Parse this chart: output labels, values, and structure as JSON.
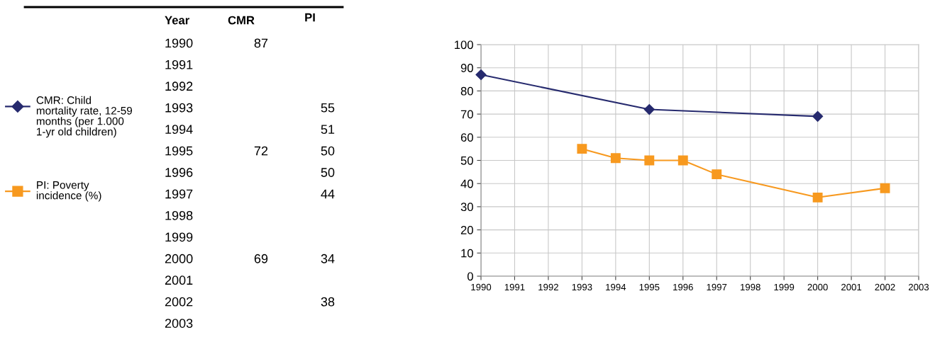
{
  "chart_data": {
    "type": "line",
    "series": [
      {
        "name": "CMR: Child mortality rate, 12-59 months (per 1.000 1-yr old children)",
        "color": "#262a6e",
        "marker": "diamond",
        "x": [
          1990,
          1995,
          2000
        ],
        "values": [
          87,
          72,
          69
        ]
      },
      {
        "name": "PI: Poverty incidence (%)",
        "color": "#f7991f",
        "marker": "square",
        "x": [
          1993,
          1994,
          1995,
          1996,
          1997,
          2000,
          2002
        ],
        "values": [
          55,
          51,
          50,
          50,
          44,
          34,
          38
        ]
      }
    ],
    "xlim": [
      1990,
      2003
    ],
    "xticks": [
      1990,
      1991,
      1992,
      1993,
      1994,
      1995,
      1996,
      1997,
      1998,
      1999,
      2000,
      2001,
      2002,
      2003
    ],
    "ylim": [
      0,
      100
    ],
    "yticks": [
      0,
      10,
      20,
      30,
      40,
      50,
      60,
      70,
      80,
      90,
      100
    ],
    "grid": true,
    "legend": "left",
    "line_style": "solid",
    "annotations": [
      "Year",
      "CMR",
      "PI",
      "1990\n1991\n1992\n1993\n1994\n1995\n1996\n1997\n1998\n1999\n2000\n2001\n2002\n2003",
      "87\n\n\n\n\n72\n\n\n\n\n69",
      "\n\n\n55\n51\n50\n50\n44\n\n\n34\n\n38"
    ]
  }
}
